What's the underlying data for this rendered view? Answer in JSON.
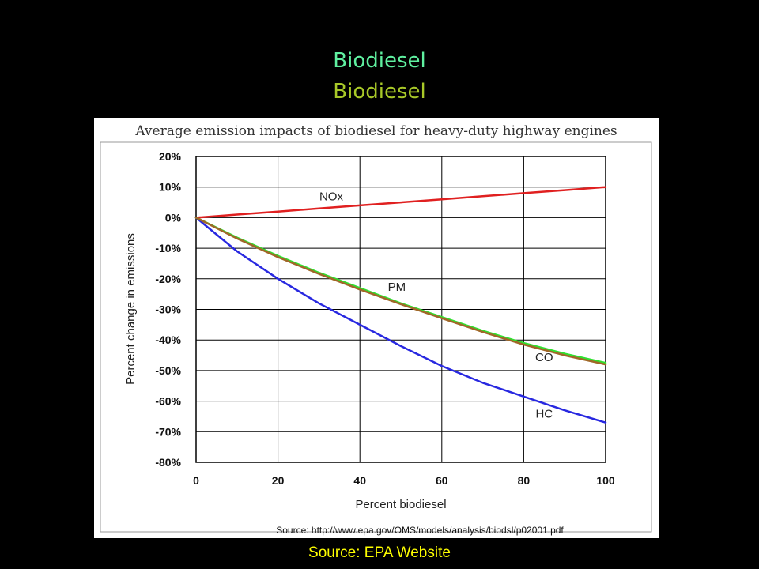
{
  "slide": {
    "title_line1": "Biodiesel",
    "title_line2": "Biodiesel",
    "source_caption": "Source: EPA Website",
    "colors": {
      "background": "#000000",
      "title_line1": "#5ff0a0",
      "title_line2": "#a8c828",
      "source_caption": "#ffff00"
    }
  },
  "chart_data": {
    "type": "line",
    "title": "Average emission impacts of biodiesel for heavy-duty highway engines",
    "xlabel": "Percent biodiesel",
    "ylabel": "Percent change in emissions",
    "xlim": [
      0,
      100
    ],
    "ylim": [
      -80,
      20
    ],
    "x_ticks": [
      0,
      20,
      40,
      60,
      80,
      100
    ],
    "y_ticks": [
      20,
      10,
      0,
      -10,
      -20,
      -30,
      -40,
      -50,
      -60,
      -70,
      -80
    ],
    "x_tick_labels": [
      "0",
      "20",
      "40",
      "60",
      "80",
      "100"
    ],
    "y_tick_labels": [
      "20%",
      "10%",
      "0%",
      "-10%",
      "-20%",
      "-30%",
      "-40%",
      "-50%",
      "-60%",
      "-70%",
      "-80%"
    ],
    "grid": true,
    "source_note": "Source: http://www.epa.gov/OMS/models/analysis/biodsl/p02001.pdf",
    "series": [
      {
        "name": "NOx",
        "color": "#e02020",
        "x": [
          0,
          10,
          20,
          30,
          40,
          50,
          60,
          70,
          80,
          90,
          100
        ],
        "y": [
          0,
          1,
          2,
          3,
          4,
          5,
          6,
          7,
          8,
          9,
          10
        ]
      },
      {
        "name": "PM",
        "color": "#30e030",
        "x": [
          0,
          10,
          20,
          30,
          40,
          50,
          60,
          70,
          80,
          90,
          100
        ],
        "y": [
          0,
          -6.5,
          -12.5,
          -18,
          -23,
          -28,
          -32.5,
          -37,
          -41,
          -44.5,
          -47.5
        ]
      },
      {
        "name": "CO",
        "color": "#a06828",
        "x": [
          0,
          10,
          20,
          30,
          40,
          50,
          60,
          70,
          80,
          90,
          100
        ],
        "y": [
          0,
          -6.8,
          -12.9,
          -18.4,
          -23.5,
          -28.3,
          -32.9,
          -37.4,
          -41.5,
          -45,
          -48
        ]
      },
      {
        "name": "HC",
        "color": "#2828e0",
        "x": [
          0,
          10,
          20,
          30,
          40,
          50,
          60,
          70,
          80,
          90,
          100
        ],
        "y": [
          0,
          -11,
          -20,
          -28,
          -35,
          -42,
          -48.5,
          -54,
          -58.5,
          -63,
          -67
        ]
      }
    ]
  }
}
